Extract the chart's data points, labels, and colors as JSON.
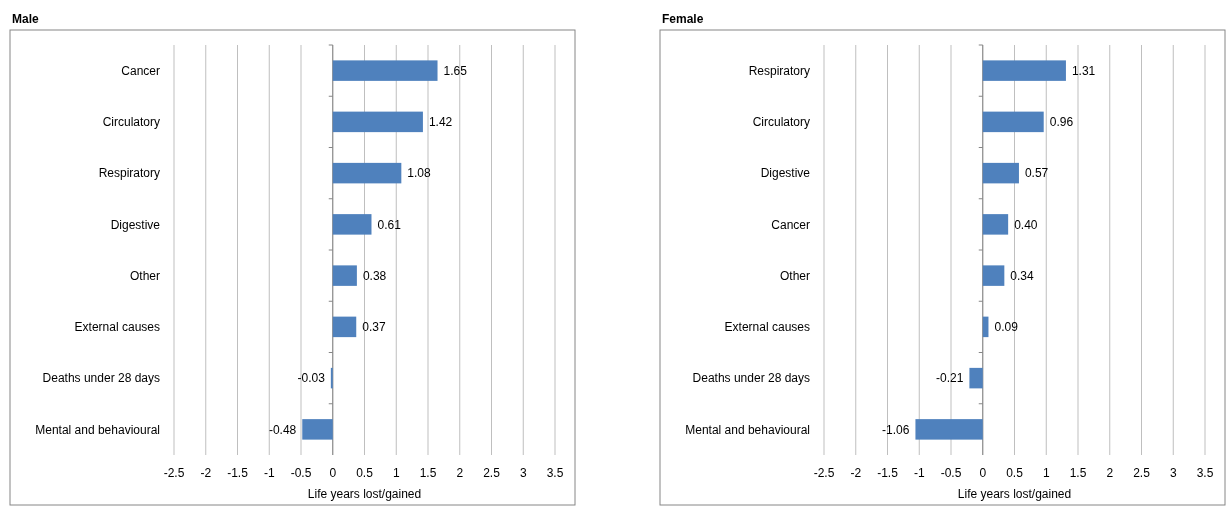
{
  "chart_data": [
    {
      "type": "bar",
      "title": "Male",
      "orientation": "horizontal",
      "xlabel": "Life years lost/gained",
      "categories": [
        "Cancer",
        "Circulatory",
        "Respiratory",
        "Digestive",
        "Other",
        "External causes",
        "Deaths under 28 days",
        "Mental and behavioural"
      ],
      "values": [
        1.65,
        1.42,
        1.08,
        0.61,
        0.38,
        0.37,
        -0.03,
        -0.48
      ],
      "value_labels": [
        "1.65",
        "1.42",
        "1.08",
        "0.61",
        "0.38",
        "0.37",
        "-0.03",
        "-0.48"
      ],
      "color": "#4f81bd",
      "xlim": [
        -2.5,
        3.5
      ],
      "xticks": [
        -2.5,
        -2,
        -1.5,
        -1,
        -0.5,
        0,
        0.5,
        1,
        1.5,
        2,
        2.5,
        3,
        3.5
      ],
      "grid": "x"
    },
    {
      "type": "bar",
      "title": "Female",
      "orientation": "horizontal",
      "xlabel": "Life years lost/gained",
      "categories": [
        "Respiratory",
        "Circulatory",
        "Digestive",
        "Cancer",
        "Other",
        "External causes",
        "Deaths under 28 days",
        "Mental and behavioural"
      ],
      "values": [
        1.31,
        0.96,
        0.57,
        0.4,
        0.34,
        0.09,
        -0.21,
        -1.06
      ],
      "value_labels": [
        "1.31",
        "0.96",
        "0.57",
        "0.40",
        "0.34",
        "0.09",
        "-0.21",
        "-1.06"
      ],
      "color": "#4f81bd",
      "xlim": [
        -2.5,
        3.5
      ],
      "xticks": [
        -2.5,
        -2,
        -1.5,
        -1,
        -0.5,
        0,
        0.5,
        1,
        1.5,
        2,
        2.5,
        3,
        3.5
      ],
      "grid": "x"
    }
  ]
}
